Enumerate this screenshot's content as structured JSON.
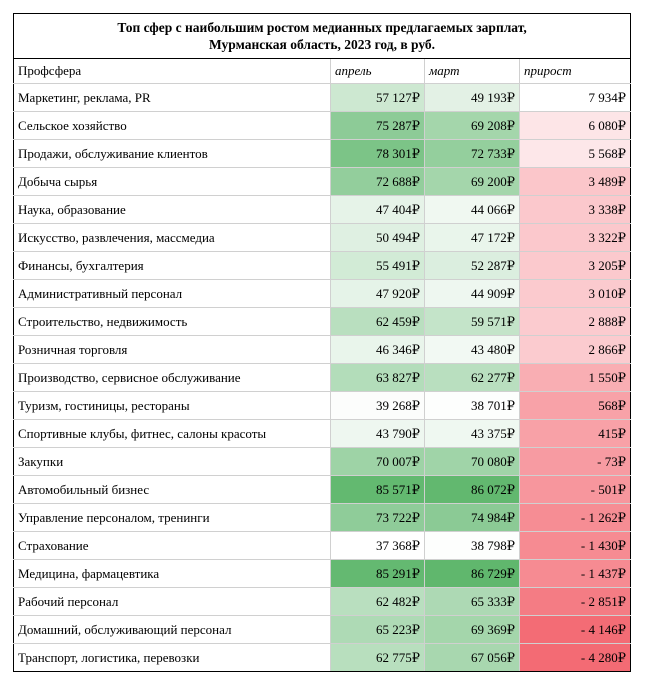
{
  "title_line1": "Топ сфер с наибольшим ростом медианных предлагаемых зарплат,",
  "title_line2": "Мурманская область, 2023 год, в руб.",
  "headers": {
    "sphere": "Профсфера",
    "april": "апрель",
    "march": "март",
    "growth": "прирост"
  },
  "rows": [
    {
      "name": "Маркетинг, реклама, PR",
      "april": "57 127₽",
      "march": "49 193₽",
      "growth": "7 934₽",
      "april_color": "#cde8d1",
      "march_color": "#e3f1e5",
      "growth_color": "#ffffff"
    },
    {
      "name": "Сельское хозяйство",
      "april": "75 287₽",
      "march": "69 208₽",
      "growth": "6 080₽",
      "april_color": "#8dcb97",
      "march_color": "#a4d6ab",
      "growth_color": "#fde5e7"
    },
    {
      "name": "Продажи, обслуживание клиентов",
      "april": "78 301₽",
      "march": "72 733₽",
      "growth": "5 568₽",
      "april_color": "#7cc487",
      "march_color": "#94cf9d",
      "growth_color": "#fde7e9"
    },
    {
      "name": "Добыча сырья",
      "april": "72 688₽",
      "march": "69 200₽",
      "growth": "3 489₽",
      "april_color": "#93ce9c",
      "march_color": "#a4d6ab",
      "growth_color": "#fbc6ca"
    },
    {
      "name": "Наука, образование",
      "april": "47 404₽",
      "march": "44 066₽",
      "growth": "3 338₽",
      "april_color": "#e6f3e8",
      "march_color": "#f0f8f1",
      "growth_color": "#fbc8cc"
    },
    {
      "name": "Искусство, развлечения, массмедиа",
      "april": "50 494₽",
      "march": "47 172₽",
      "growth": "3 322₽",
      "april_color": "#dff0e2",
      "march_color": "#e9f5eb",
      "growth_color": "#fbc8cc"
    },
    {
      "name": "Финансы, бухгалтерия",
      "april": "55 491₽",
      "march": "52 287₽",
      "growth": "3 205₽",
      "april_color": "#d2eBd6",
      "march_color": "#dbeedf",
      "growth_color": "#fbc9cd"
    },
    {
      "name": "Административный персонал",
      "april": "47 920₽",
      "march": "44 909₽",
      "growth": "3 010₽",
      "april_color": "#e5f3e8",
      "march_color": "#eef7f0",
      "growth_color": "#fbcace"
    },
    {
      "name": "Строительство, недвижимость",
      "april": "62 459₽",
      "march": "59 571₽",
      "growth": "2 888₽",
      "april_color": "#b9dfbf",
      "march_color": "#c4e4c9",
      "growth_color": "#fbcbcf"
    },
    {
      "name": "Розничная торговля",
      "april": "46 346₽",
      "march": "43 480₽",
      "growth": "2 866₽",
      "april_color": "#e9f5eb",
      "march_color": "#f2f9f3",
      "growth_color": "#fbcbcf"
    },
    {
      "name": "Производство, сервисное обслуживание",
      "april": "63 827₽",
      "march": "62 277₽",
      "growth": "1 550₽",
      "april_color": "#b3ddba",
      "march_color": "#b9dfbf",
      "growth_color": "#f9aeb3"
    },
    {
      "name": "Туризм, гостиницы, рестораны",
      "april": "39 268₽",
      "march": "38 701₽",
      "growth": "568₽",
      "april_color": "#fcfdfc",
      "march_color": "#fdfefd",
      "growth_color": "#f8a2a8"
    },
    {
      "name": "Спортивные клубы, фитнес, салоны красоты",
      "april": "43 790₽",
      "march": "43 375₽",
      "growth": "415₽",
      "april_color": "#eef7f0",
      "march_color": "#eff8f1",
      "growth_color": "#f8a1a7"
    },
    {
      "name": "Закупки",
      "april": "70 007₽",
      "march": "70 080₽",
      "growth": "- 73₽",
      "april_color": "#9ed3a6",
      "march_color": "#a0d4a8",
      "growth_color": "#f79ba2"
    },
    {
      "name": "Автомобильный бизнес",
      "april": "85 571₽",
      "march": "86 072₽",
      "growth": "- 501₽",
      "april_color": "#63b970",
      "march_color": "#62b86f",
      "growth_color": "#f7969d"
    },
    {
      "name": "Управление персоналом, тренинги",
      "april": "73 722₽",
      "march": "74 984₽",
      "growth": "- 1 262₽",
      "april_color": "#8fcc99",
      "march_color": "#8bca95",
      "growth_color": "#f68d94"
    },
    {
      "name": "Страхование",
      "april": "37 368₽",
      "march": "38 798₽",
      "growth": "- 1 430₽",
      "april_color": "#ffffff",
      "march_color": "#fdfefd",
      "growth_color": "#f68b92"
    },
    {
      "name": "Медицина, фармацевтика",
      "april": "85 291₽",
      "march": "86 729₽",
      "growth": "- 1 437₽",
      "april_color": "#64b971",
      "march_color": "#60b76d",
      "growth_color": "#f68b92"
    },
    {
      "name": "Рабочий персонал",
      "april": "62 482₽",
      "march": "65 333₽",
      "growth": "- 2 851₽",
      "april_color": "#b9dfbf",
      "march_color": "#add9b4",
      "growth_color": "#f47c84"
    },
    {
      "name": "Домашний, обслуживающий персонал",
      "april": "65 223₽",
      "march": "69 369₽",
      "growth": "- 4 146₽",
      "april_color": "#aedab5",
      "march_color": "#a4d6ab",
      "growth_color": "#f36c75"
    },
    {
      "name": "Транспорт, логистика, перевозки",
      "april": "62 775₽",
      "march": "67 056₽",
      "growth": "- 4 280₽",
      "april_color": "#b8dfbe",
      "march_color": "#a8d7af",
      "growth_color": "#f36b74"
    }
  ]
}
